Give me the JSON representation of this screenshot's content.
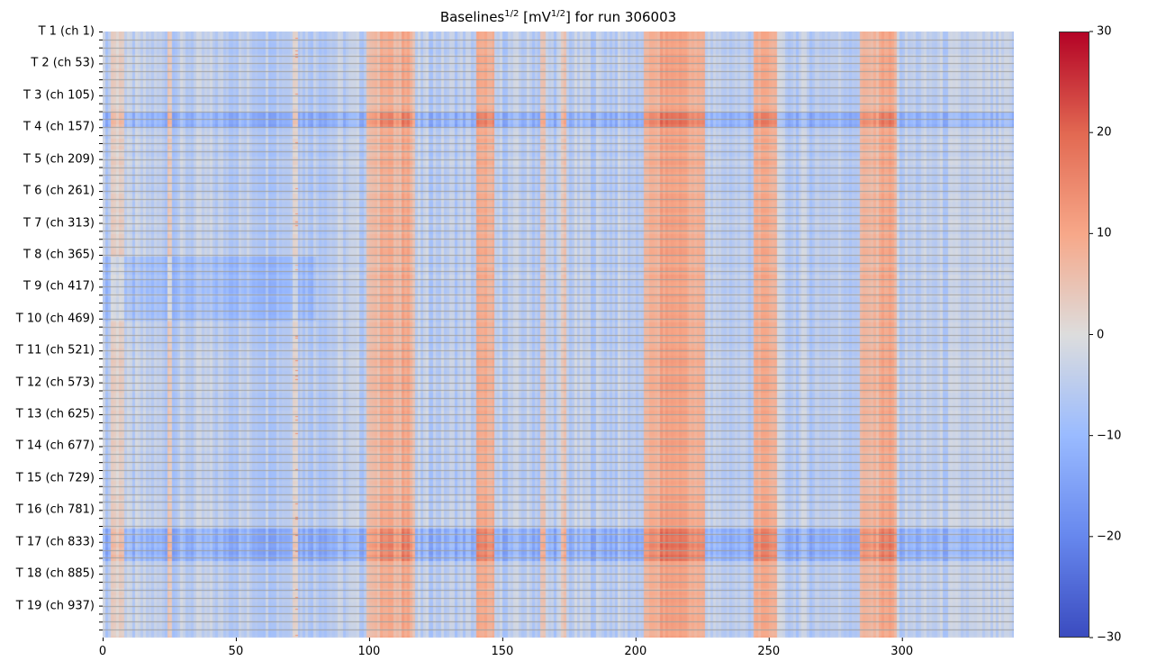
{
  "chart_data": {
    "type": "heatmap",
    "title_main": "Baselines",
    "title_sup1": "1/2",
    "title_mid": " [mV",
    "title_sup2": "1/2",
    "title_end": "] for run 306003",
    "xlim": [
      0,
      342
    ],
    "n_channels": 988,
    "channels_per_tile": 52,
    "minor_tick_every_channels": 13,
    "xticks": [
      0,
      50,
      100,
      150,
      200,
      250,
      300
    ],
    "yticklabels": [
      "T 1 (ch 1)",
      "T 2 (ch 53)",
      "T 3 (ch 105)",
      "T 4 (ch 157)",
      "T 5 (ch 209)",
      "T 6 (ch 261)",
      "T 7 (ch 313)",
      "T 8 (ch 365)",
      "T 9 (ch 417)",
      "T 10 (ch 469)",
      "T 11 (ch 521)",
      "T 12 (ch 573)",
      "T 13 (ch 625)",
      "T 14 (ch 677)",
      "T 15 (ch 729)",
      "T 16 (ch 781)",
      "T 17 (ch 833)",
      "T 18 (ch 885)",
      "T 19 (ch 937)"
    ],
    "colorbar": {
      "cmap": "coolwarm",
      "vmin": -30,
      "vmax": 30,
      "ticks": [
        30,
        20,
        10,
        0,
        -10,
        -20,
        -30
      ]
    },
    "column_profile": [
      {
        "x0": 3,
        "x1": 8,
        "v": 2
      },
      {
        "x0": 24,
        "x1": 26,
        "v": 4
      },
      {
        "x0": 71,
        "x1": 73,
        "v": 3
      },
      {
        "x0": 99,
        "x1": 117,
        "v": 6
      },
      {
        "x0": 104,
        "x1": 109,
        "v": 10
      },
      {
        "x0": 112,
        "x1": 115,
        "v": 10
      },
      {
        "x0": 140,
        "x1": 147,
        "v": 9
      },
      {
        "x0": 164,
        "x1": 166,
        "v": 4
      },
      {
        "x0": 172,
        "x1": 174,
        "v": 4
      },
      {
        "x0": 203,
        "x1": 226,
        "v": 8
      },
      {
        "x0": 209,
        "x1": 220,
        "v": 11
      },
      {
        "x0": 244,
        "x1": 253,
        "v": 9
      },
      {
        "x0": 284,
        "x1": 298,
        "v": 7
      },
      {
        "x0": 291,
        "x1": 297,
        "v": 10
      }
    ],
    "high_contrast_channel_bands": [
      [
        130,
        157
      ],
      [
        810,
        862
      ]
    ],
    "low_left_channel_bands": [
      [
        366,
        470
      ]
    ],
    "baseline_value": -5
  }
}
